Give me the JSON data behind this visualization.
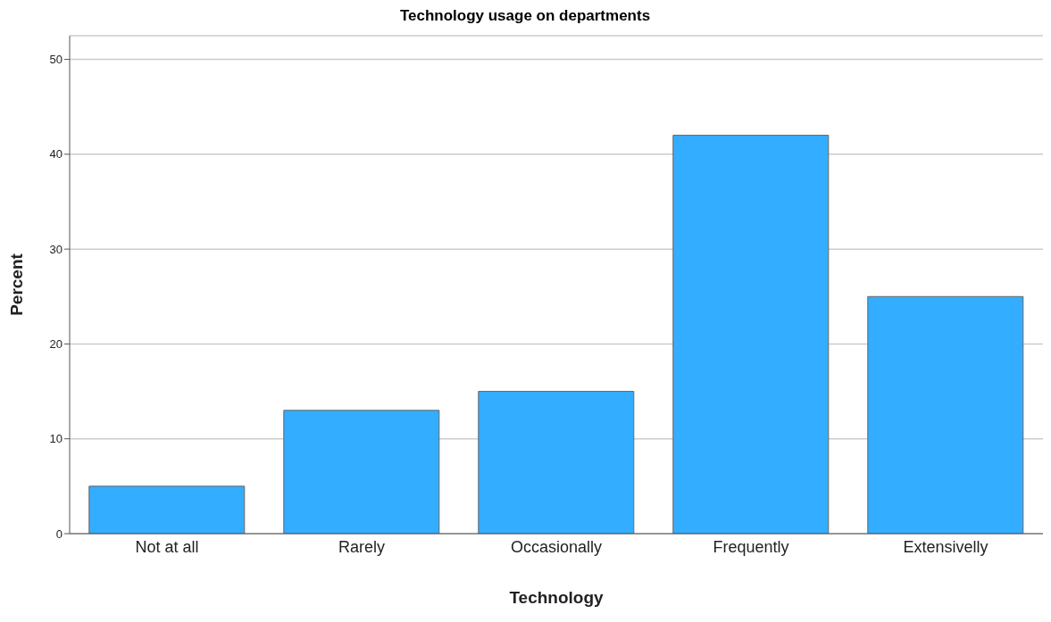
{
  "chart_data": {
    "type": "bar",
    "title": "Technology usage on departments",
    "xlabel": "Technology",
    "ylabel": "Percent",
    "categories": [
      "Not at all",
      "Rarely",
      "Occasionally",
      "Frequently",
      "Extensivelly"
    ],
    "values": [
      5,
      13,
      15,
      42,
      25
    ],
    "color": "#33adff",
    "ylim": [
      0,
      52.5
    ],
    "yticks": [
      0,
      10,
      20,
      30,
      40,
      50
    ],
    "grid": "y"
  }
}
